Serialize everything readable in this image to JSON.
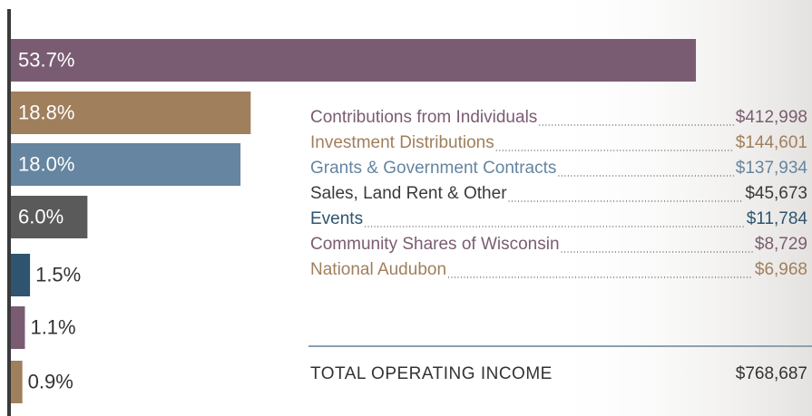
{
  "chart_data": {
    "type": "bar",
    "orientation": "horizontal",
    "values": [
      53.7,
      18.8,
      18.0,
      6.0,
      1.5,
      1.1,
      0.9
    ],
    "value_labels": [
      "53.7%",
      "18.8%",
      "18.0%",
      "6.0%",
      "1.5%",
      "1.1%",
      "0.9%"
    ],
    "colors": [
      "#7a5c72",
      "#a07f5c",
      "#6585a0",
      "#5a5a5a",
      "#2e5470",
      "#7a5c72",
      "#a07f5c"
    ],
    "xlim": [
      0,
      62.8
    ]
  },
  "income_table": {
    "rows": [
      {
        "label": "Contributions from Individuals",
        "amount": "$412,998",
        "color": "#7a5c72"
      },
      {
        "label": "Investment Distributions",
        "amount": "$144,601",
        "color": "#a07f5c"
      },
      {
        "label": "Grants & Government Contracts",
        "amount": "$137,934",
        "color": "#6585a0"
      },
      {
        "label": "Sales, Land Rent & Other",
        "amount": "$45,673",
        "color": "#3a3a3a"
      },
      {
        "label": "Events",
        "amount": "$11,784",
        "color": "#2e5470"
      },
      {
        "label": "Community Shares of Wisconsin",
        "amount": "$8,729",
        "color": "#7a5c72"
      },
      {
        "label": "National Audubon",
        "amount": "$6,968",
        "color": "#a07f5c"
      }
    ],
    "total": {
      "label": "TOTAL OPERATING INCOME",
      "amount": "$768,687"
    }
  }
}
